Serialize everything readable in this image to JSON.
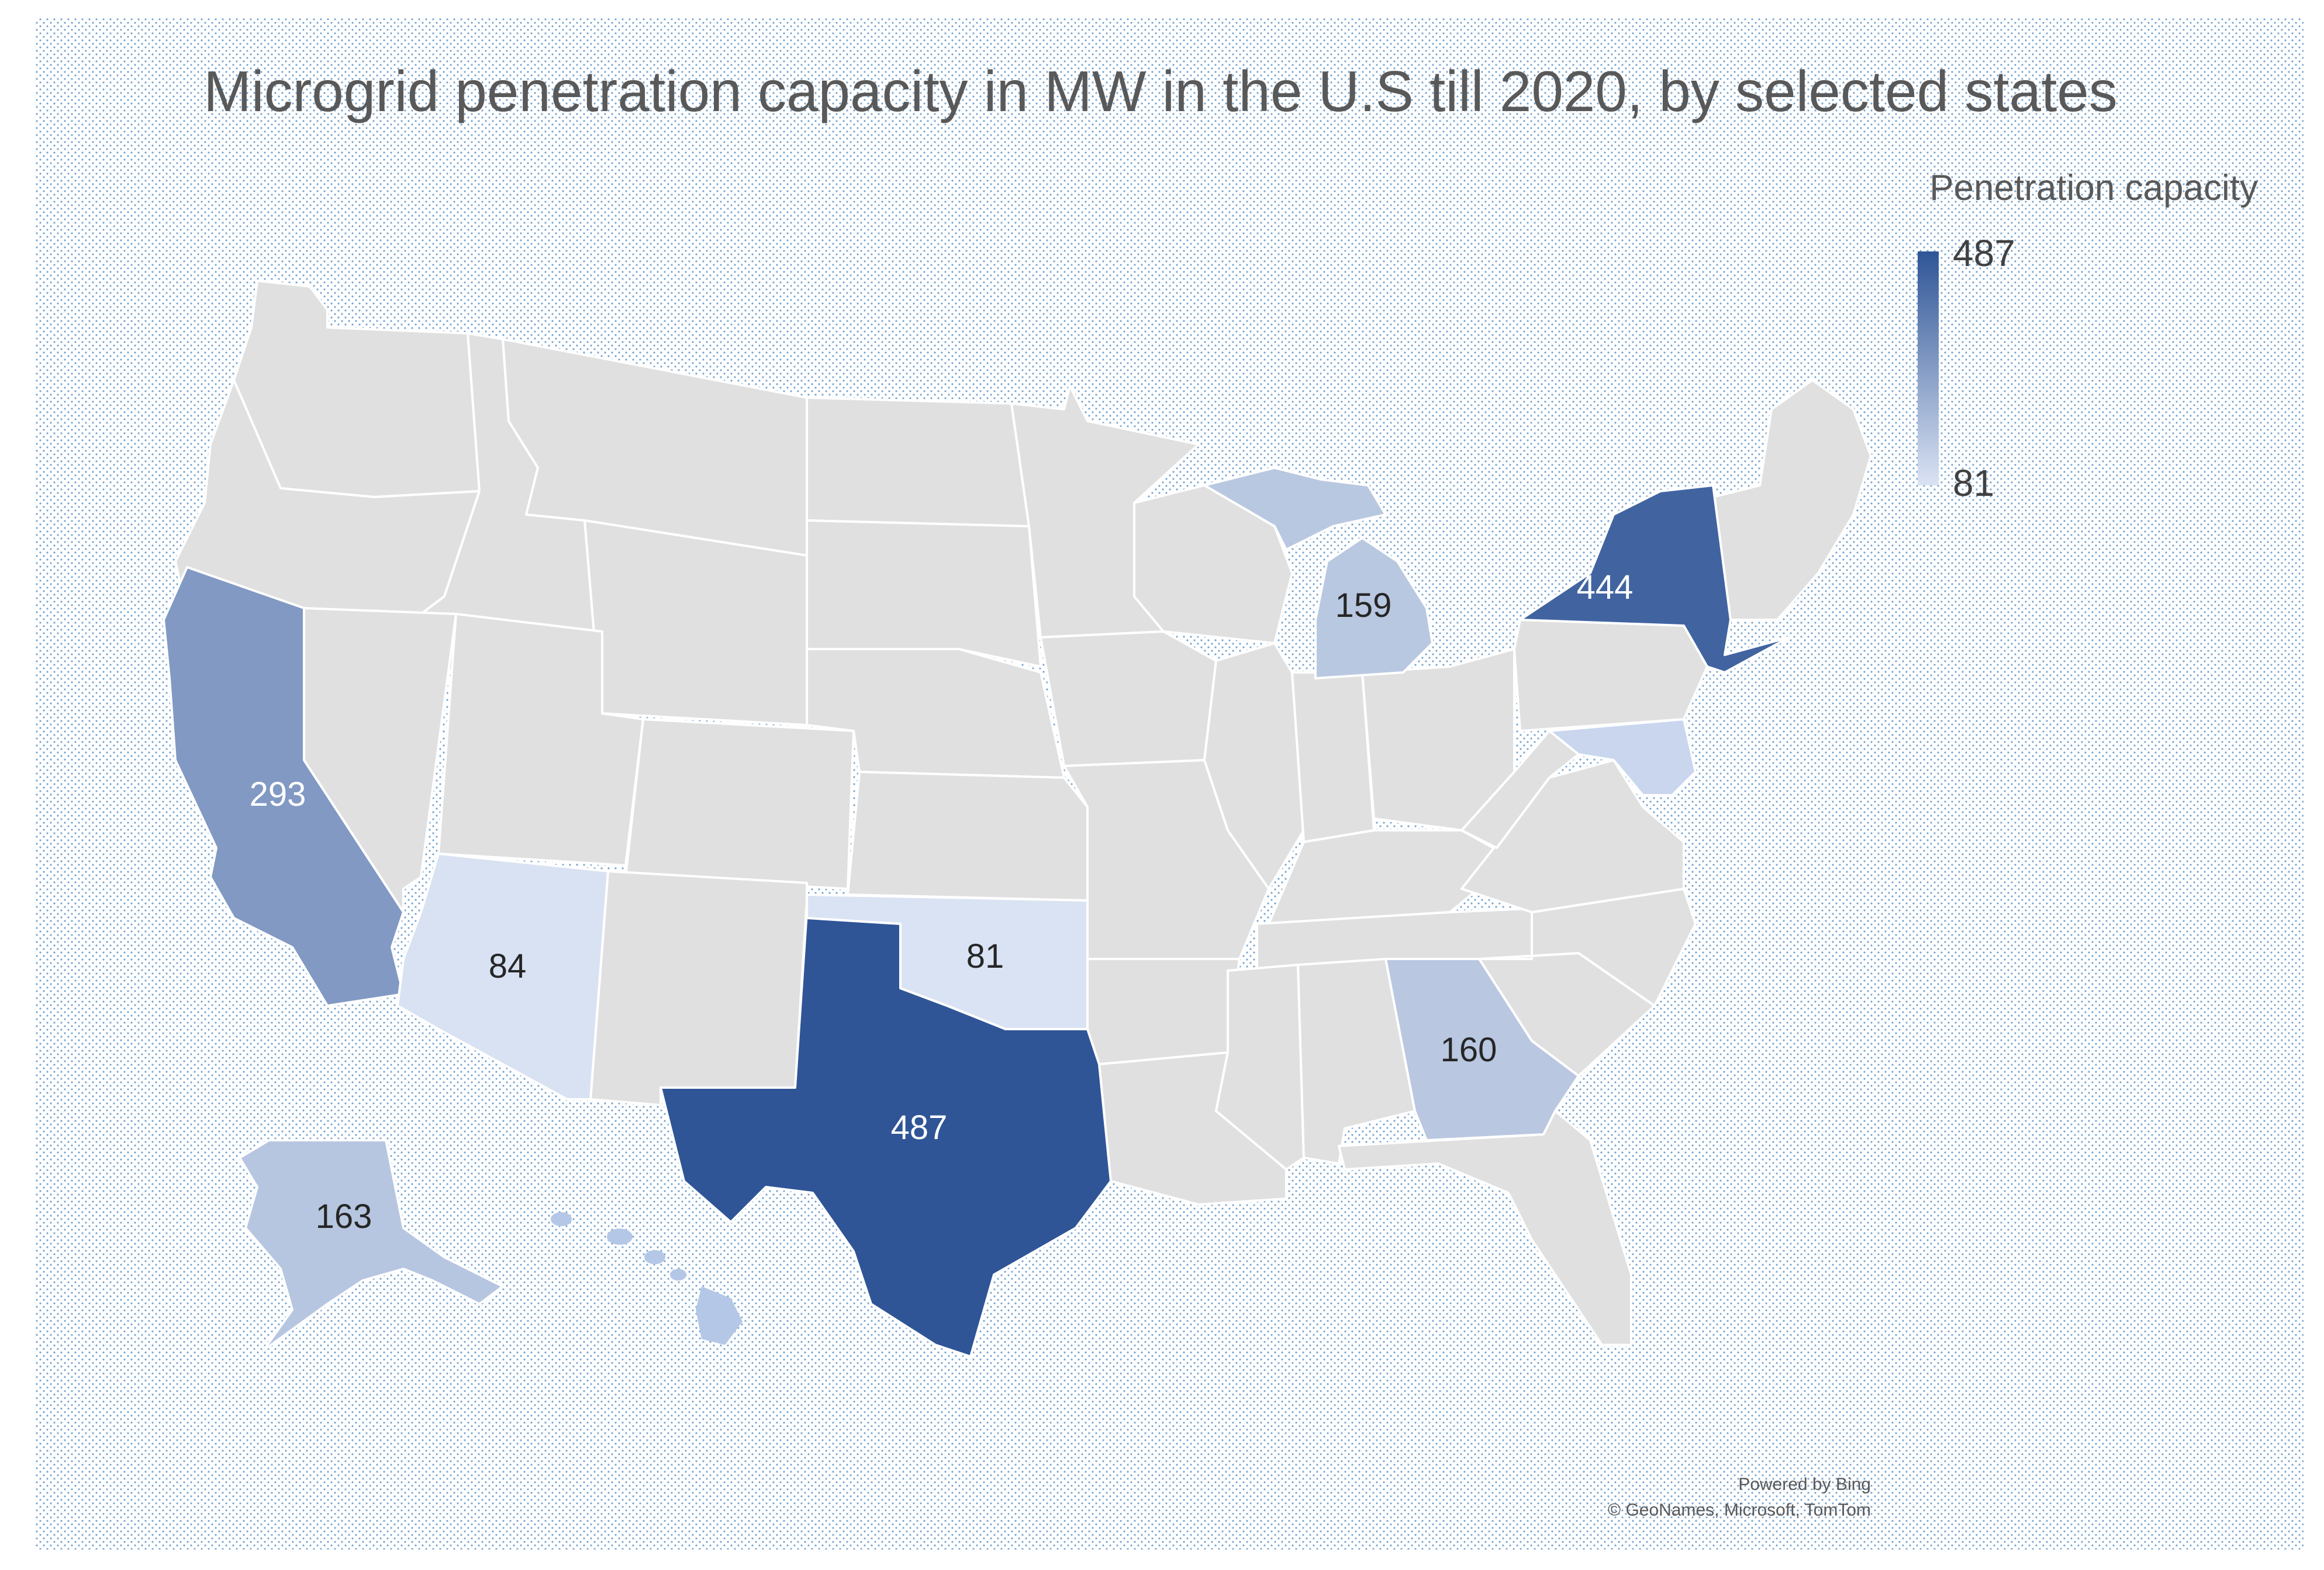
{
  "title": "Microgrid penetration capacity in MW in the U.S till 2020, by selected states",
  "legend": {
    "title": "Penetration capacity",
    "max_label": "487",
    "min_label": "81",
    "max_color": "#2f5597",
    "min_color": "#dae3f3"
  },
  "colors": {
    "no_data": "#e0e0e0",
    "dots": "#2e75b6"
  },
  "chart_data": {
    "type": "choropleth",
    "title": "Microgrid penetration capacity in MW in the U.S till 2020, by selected states",
    "legend_title": "Penetration capacity",
    "range": [
      81,
      487
    ],
    "regions": [
      {
        "state": "Texas",
        "value": 487
      },
      {
        "state": "New York",
        "value": 444
      },
      {
        "state": "California",
        "value": 293
      },
      {
        "state": "Alaska",
        "value": 163
      },
      {
        "state": "Georgia",
        "value": 160
      },
      {
        "state": "Michigan",
        "value": 159
      },
      {
        "state": "Arizona",
        "value": 84
      },
      {
        "state": "Oklahoma",
        "value": 81
      }
    ]
  },
  "labels": {
    "texas": "487",
    "new_york": "444",
    "california": "293",
    "alaska": "163",
    "georgia": "160",
    "michigan": "159",
    "arizona": "84",
    "oklahoma": "81"
  },
  "credit": {
    "line1": "Powered by Bing",
    "line2": "© GeoNames, Microsoft, TomTom"
  }
}
